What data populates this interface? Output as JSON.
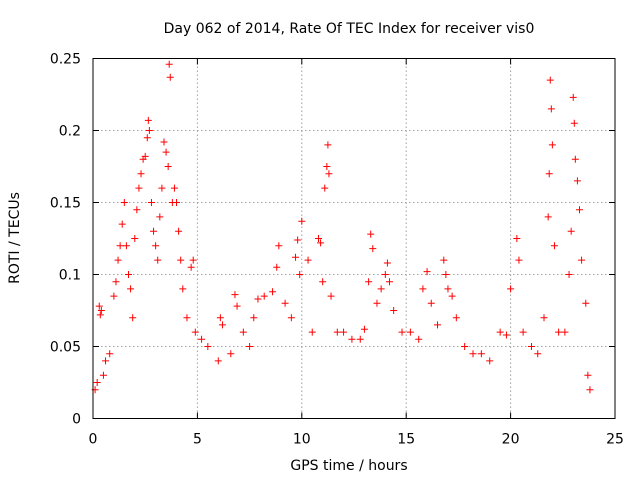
{
  "chart_data": {
    "type": "scatter",
    "title": "Day 062 of 2014, Rate Of TEC Index for receiver vis0",
    "xlabel": "GPS time / hours",
    "ylabel": "ROTI / TECUs",
    "xlim": [
      0,
      25
    ],
    "ylim": [
      0,
      0.25
    ],
    "x_ticks": [
      0,
      5,
      10,
      15,
      20,
      25
    ],
    "x_tick_labels": [
      "0",
      "5",
      "10",
      "15",
      "20",
      "25"
    ],
    "y_ticks": [
      0,
      0.05,
      0.1,
      0.15,
      0.2,
      0.25
    ],
    "y_tick_labels": [
      "0",
      "0.05",
      "0.1",
      "0.15",
      "0.2",
      "0.25"
    ],
    "grid": true,
    "marker": "+",
    "color": "#ff0000",
    "series": [
      {
        "name": "ROTI",
        "points": [
          [
            0.1,
            0.02
          ],
          [
            0.2,
            0.025
          ],
          [
            0.3,
            0.078
          ],
          [
            0.35,
            0.072
          ],
          [
            0.4,
            0.075
          ],
          [
            0.5,
            0.03
          ],
          [
            0.6,
            0.04
          ],
          [
            0.8,
            0.045
          ],
          [
            1.0,
            0.085
          ],
          [
            1.1,
            0.095
          ],
          [
            1.2,
            0.11
          ],
          [
            1.3,
            0.12
          ],
          [
            1.4,
            0.135
          ],
          [
            1.5,
            0.15
          ],
          [
            1.6,
            0.12
          ],
          [
            1.7,
            0.1
          ],
          [
            1.8,
            0.09
          ],
          [
            1.9,
            0.07
          ],
          [
            2.0,
            0.125
          ],
          [
            2.1,
            0.145
          ],
          [
            2.2,
            0.16
          ],
          [
            2.3,
            0.17
          ],
          [
            2.4,
            0.18
          ],
          [
            2.5,
            0.182
          ],
          [
            2.6,
            0.195
          ],
          [
            2.65,
            0.207
          ],
          [
            2.7,
            0.2
          ],
          [
            2.8,
            0.15
          ],
          [
            2.9,
            0.13
          ],
          [
            3.0,
            0.12
          ],
          [
            3.1,
            0.11
          ],
          [
            3.2,
            0.14
          ],
          [
            3.3,
            0.16
          ],
          [
            3.4,
            0.192
          ],
          [
            3.5,
            0.185
          ],
          [
            3.6,
            0.175
          ],
          [
            3.65,
            0.246
          ],
          [
            3.7,
            0.237
          ],
          [
            3.8,
            0.15
          ],
          [
            3.9,
            0.16
          ],
          [
            4.0,
            0.15
          ],
          [
            4.1,
            0.13
          ],
          [
            4.2,
            0.11
          ],
          [
            4.3,
            0.09
          ],
          [
            4.5,
            0.07
          ],
          [
            4.7,
            0.105
          ],
          [
            4.8,
            0.11
          ],
          [
            4.9,
            0.06
          ],
          [
            5.2,
            0.055
          ],
          [
            5.5,
            0.05
          ],
          [
            6.0,
            0.04
          ],
          [
            6.1,
            0.07
          ],
          [
            6.2,
            0.065
          ],
          [
            6.6,
            0.045
          ],
          [
            6.8,
            0.086
          ],
          [
            6.9,
            0.078
          ],
          [
            7.2,
            0.06
          ],
          [
            7.5,
            0.05
          ],
          [
            7.7,
            0.07
          ],
          [
            7.9,
            0.083
          ],
          [
            8.2,
            0.085
          ],
          [
            8.6,
            0.088
          ],
          [
            8.8,
            0.105
          ],
          [
            8.9,
            0.12
          ],
          [
            9.2,
            0.08
          ],
          [
            9.5,
            0.07
          ],
          [
            9.7,
            0.112
          ],
          [
            9.8,
            0.124
          ],
          [
            9.9,
            0.1
          ],
          [
            10.0,
            0.137
          ],
          [
            10.3,
            0.11
          ],
          [
            10.5,
            0.06
          ],
          [
            10.8,
            0.125
          ],
          [
            10.9,
            0.122
          ],
          [
            11.0,
            0.095
          ],
          [
            11.1,
            0.16
          ],
          [
            11.2,
            0.175
          ],
          [
            11.25,
            0.19
          ],
          [
            11.3,
            0.17
          ],
          [
            11.4,
            0.085
          ],
          [
            11.7,
            0.06
          ],
          [
            12.0,
            0.06
          ],
          [
            12.4,
            0.055
          ],
          [
            12.8,
            0.055
          ],
          [
            13.0,
            0.062
          ],
          [
            13.2,
            0.095
          ],
          [
            13.3,
            0.128
          ],
          [
            13.4,
            0.118
          ],
          [
            13.6,
            0.08
          ],
          [
            13.8,
            0.09
          ],
          [
            14.0,
            0.1
          ],
          [
            14.1,
            0.108
          ],
          [
            14.2,
            0.095
          ],
          [
            14.4,
            0.075
          ],
          [
            14.8,
            0.06
          ],
          [
            15.2,
            0.06
          ],
          [
            15.6,
            0.055
          ],
          [
            15.8,
            0.09
          ],
          [
            16.0,
            0.102
          ],
          [
            16.2,
            0.08
          ],
          [
            16.5,
            0.065
          ],
          [
            16.8,
            0.11
          ],
          [
            16.9,
            0.1
          ],
          [
            17.0,
            0.09
          ],
          [
            17.2,
            0.085
          ],
          [
            17.4,
            0.07
          ],
          [
            17.8,
            0.05
          ],
          [
            18.2,
            0.045
          ],
          [
            18.6,
            0.045
          ],
          [
            19.0,
            0.04
          ],
          [
            19.5,
            0.06
          ],
          [
            19.8,
            0.058
          ],
          [
            20.0,
            0.09
          ],
          [
            20.3,
            0.125
          ],
          [
            20.4,
            0.11
          ],
          [
            20.6,
            0.06
          ],
          [
            21.0,
            0.05
          ],
          [
            21.3,
            0.045
          ],
          [
            21.6,
            0.07
          ],
          [
            21.8,
            0.14
          ],
          [
            21.85,
            0.17
          ],
          [
            21.9,
            0.235
          ],
          [
            21.95,
            0.215
          ],
          [
            22.0,
            0.19
          ],
          [
            22.1,
            0.12
          ],
          [
            22.3,
            0.06
          ],
          [
            22.6,
            0.06
          ],
          [
            22.8,
            0.1
          ],
          [
            22.9,
            0.13
          ],
          [
            23.0,
            0.223
          ],
          [
            23.05,
            0.205
          ],
          [
            23.1,
            0.18
          ],
          [
            23.2,
            0.165
          ],
          [
            23.3,
            0.145
          ],
          [
            23.4,
            0.11
          ],
          [
            23.6,
            0.08
          ],
          [
            23.7,
            0.03
          ],
          [
            23.8,
            0.02
          ]
        ]
      }
    ]
  }
}
